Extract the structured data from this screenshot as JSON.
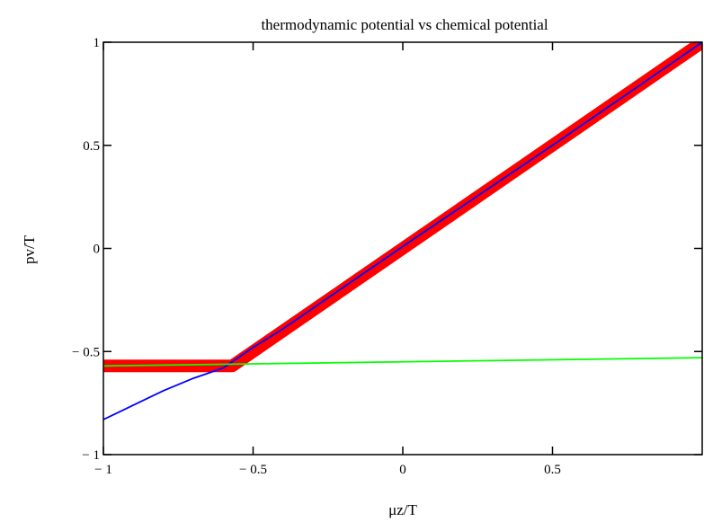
{
  "chart_data": {
    "type": "line",
    "title": "thermodynamic potential vs chemical potential",
    "xlabel": "μz/T",
    "ylabel": "pv/T",
    "xlim": [
      -1,
      1
    ],
    "ylim": [
      -1,
      1
    ],
    "x_ticks": [
      -1,
      -0.5,
      0,
      0.5
    ],
    "x_tick_labels": [
      "− 1",
      "− 0.5",
      "0",
      "0.5"
    ],
    "y_ticks": [
      -1,
      -0.5,
      0,
      0.5,
      1
    ],
    "y_tick_labels": [
      "− 1",
      "− 0.5",
      "0",
      "0.5",
      "1"
    ],
    "grid": false,
    "series": [
      {
        "color": "#ff0000",
        "style": "thick",
        "x": [
          -1,
          -0.57,
          1
        ],
        "y": [
          -0.57,
          -0.57,
          1
        ]
      },
      {
        "color": "#0000ff",
        "style": "thin",
        "x": [
          -1,
          -0.9,
          -0.8,
          -0.7,
          -0.6,
          -0.5,
          -0.4,
          0,
          0.5,
          1
        ],
        "y": [
          -0.83,
          -0.76,
          -0.69,
          -0.63,
          -0.58,
          -0.48,
          -0.39,
          0.01,
          0.5,
          1
        ]
      },
      {
        "color": "#00ff00",
        "style": "thin",
        "x": [
          -1,
          1
        ],
        "y": [
          -0.57,
          -0.53
        ]
      }
    ]
  }
}
